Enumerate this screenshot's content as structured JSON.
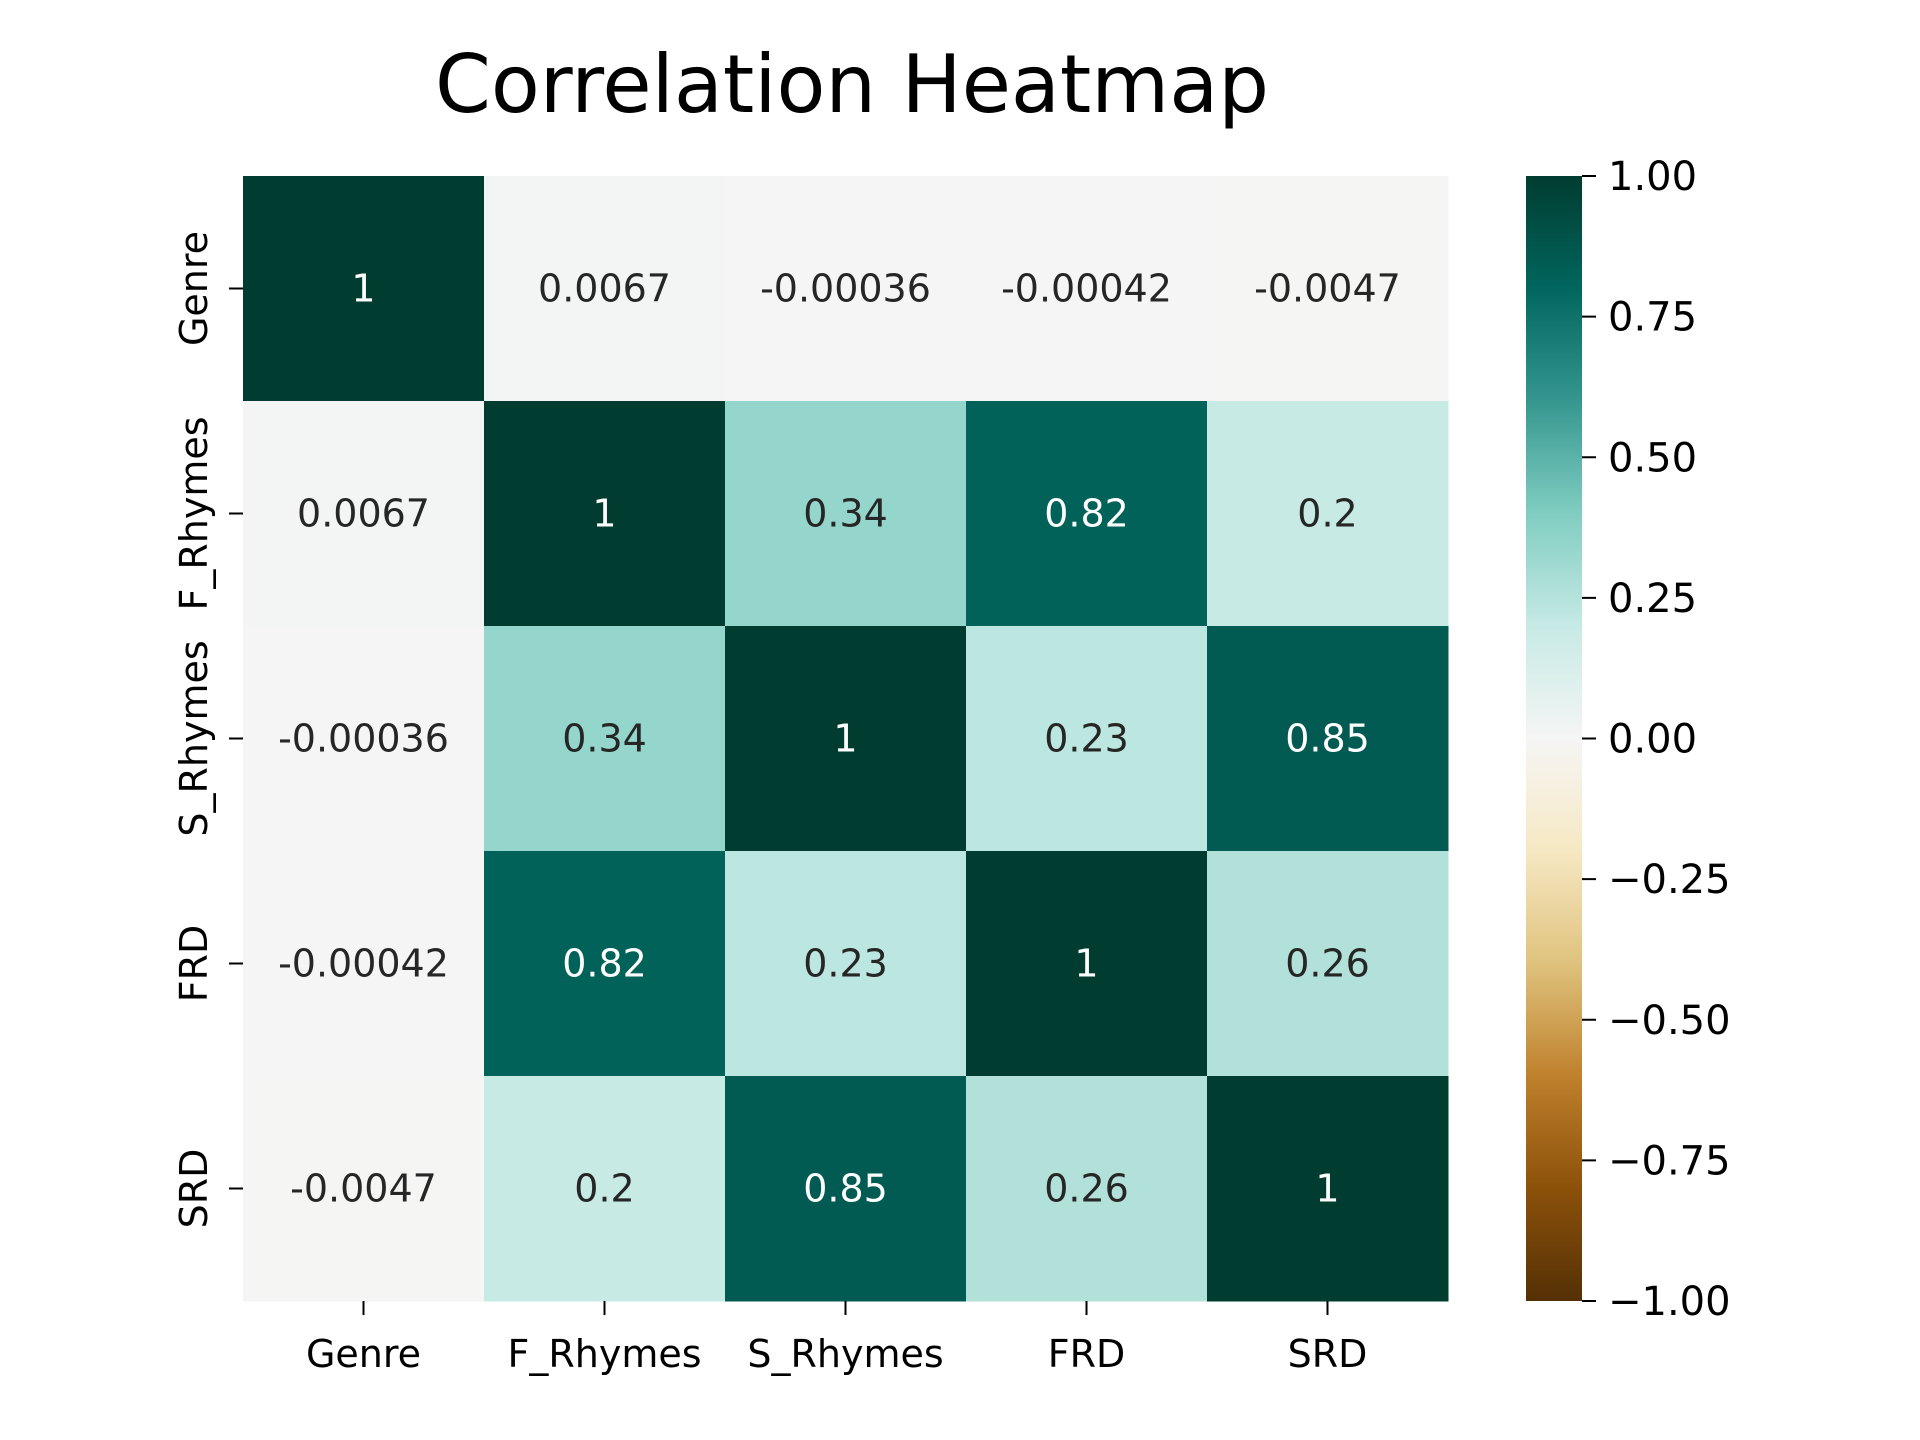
{
  "chart_data": {
    "type": "heatmap",
    "title": "Correlation Heatmap",
    "xlabel": "",
    "ylabel": "",
    "x_categories": [
      "Genre",
      "F_Rhymes",
      "S_Rhymes",
      "FRD",
      "SRD"
    ],
    "y_categories": [
      "Genre",
      "F_Rhymes",
      "S_Rhymes",
      "FRD",
      "SRD"
    ],
    "values": [
      [
        1,
        0.0067,
        -0.00036,
        -0.00042,
        -0.0047
      ],
      [
        0.0067,
        1,
        0.34,
        0.82,
        0.2
      ],
      [
        -0.00036,
        0.34,
        1,
        0.23,
        0.85
      ],
      [
        -0.00042,
        0.82,
        0.23,
        1,
        0.26
      ],
      [
        -0.0047,
        0.2,
        0.85,
        0.26,
        1
      ]
    ],
    "cell_labels": [
      [
        "1",
        "0.0067",
        "-0.00036",
        "-0.00042",
        "-0.0047"
      ],
      [
        "0.0067",
        "1",
        "0.34",
        "0.82",
        "0.2"
      ],
      [
        "-0.00036",
        "0.34",
        "1",
        "0.23",
        "0.85"
      ],
      [
        "-0.00042",
        "0.82",
        "0.23",
        "1",
        "0.26"
      ],
      [
        "-0.0047",
        "0.2",
        "0.85",
        "0.26",
        "1"
      ]
    ],
    "colormap": "BrBG",
    "vmin": -1,
    "vmax": 1,
    "colorbar_ticks": [
      1.0,
      0.75,
      0.5,
      0.25,
      0.0,
      -0.25,
      -0.5,
      -0.75,
      -1.0
    ],
    "colorbar_tick_labels": [
      "1.00",
      "0.75",
      "0.50",
      "0.25",
      "0.00",
      "−0.25",
      "−0.50",
      "−0.75",
      "−1.00"
    ],
    "colorbar_position": "right",
    "grid": false
  }
}
